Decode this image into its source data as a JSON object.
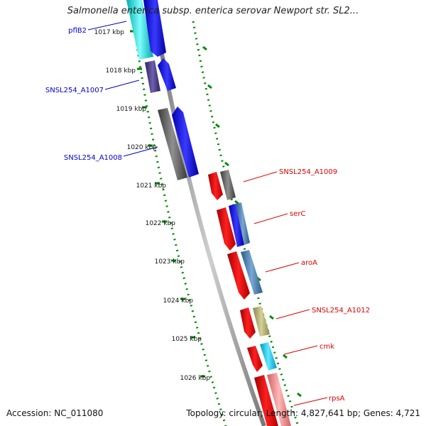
{
  "title": "Salmonella enterica subsp. enterica serovar Newport str. SL2...",
  "accession": "Accession: NC_011080",
  "topology": "Topology: circular; Length: 4,827,641 bp; Genes: 4,721",
  "ticks": [
    "1017 kbp",
    "1018 kbp",
    "1019 kbp",
    "1020 kbp",
    "1021 kbp",
    "1022 kbp",
    "1023 kbp",
    "1024 kbp",
    "1025 kbp",
    "1026 kbp"
  ],
  "genes": [
    {
      "label": "pflB2",
      "strand": "minus",
      "color": "#0000ee"
    },
    {
      "label": "SNSL254_A1007",
      "strand": "minus",
      "color": "#0000ee"
    },
    {
      "label": "SNSL254_A1008",
      "strand": "minus",
      "color": "#0000ee"
    },
    {
      "label": "SNSL254_A1009",
      "strand": "plus",
      "color": "#dd0000"
    },
    {
      "label": "serC",
      "strand": "plus",
      "color": "#dd0000"
    },
    {
      "label": "aroA",
      "strand": "plus",
      "color": "#dd0000"
    },
    {
      "label": "SNSL254_A1012",
      "strand": "plus",
      "color": "#dd0000"
    },
    {
      "label": "cmk",
      "strand": "plus",
      "color": "#dd0000"
    },
    {
      "label": "rpsA",
      "strand": "plus",
      "color": "#dd0000"
    }
  ],
  "colors": {
    "backbone": "#888888",
    "tick_dots": "#008800",
    "minus_label": "#0000cc",
    "plus_label": "#dd0000",
    "cog_cyan": "#00e5e5",
    "cog_blue": "#0000ff",
    "cog_purple": "#4b3c8c",
    "cog_gray": "#5f5f5f",
    "cog_steel": "#4682b4",
    "cog_khaki": "#b5b06a",
    "cog_lightcyan": "#00c8f0",
    "cog_pink": "#f08a8a"
  }
}
